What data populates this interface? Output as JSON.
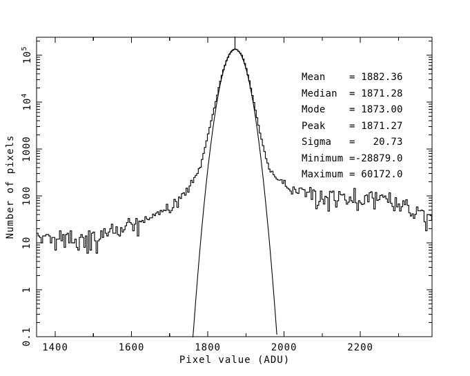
{
  "figure": {
    "background": "#ffffff",
    "line_color": "#000000"
  },
  "chart_data": {
    "type": "line",
    "title": "",
    "xlabel": "Pixel value (ADU)",
    "ylabel": "Number of pixels",
    "grid": false,
    "x_axis": {
      "min": 1351,
      "max": 2388,
      "major_step": 200,
      "minor_step": 100,
      "major_ticks": [
        {
          "value": 1400,
          "label": "1400"
        },
        {
          "value": 1600,
          "label": "1600"
        },
        {
          "value": 1800,
          "label": "1800"
        },
        {
          "value": 2000,
          "label": "2000"
        },
        {
          "value": 2200,
          "label": "2200"
        }
      ]
    },
    "y_axis": {
      "scale": "log",
      "min": 0.1,
      "max": 240000,
      "major_ticks": [
        {
          "value": 0.1,
          "label": "0.1"
        },
        {
          "value": 1,
          "label": "1"
        },
        {
          "value": 10,
          "label": "10"
        },
        {
          "value": 100,
          "label": "100"
        },
        {
          "value": 1000,
          "label": "1000"
        },
        {
          "value": 10000,
          "label": "10",
          "sup": "4"
        },
        {
          "value": 100000,
          "label": "10",
          "sup": "5"
        }
      ]
    },
    "series": [
      {
        "name": "pixel-value-histogram",
        "style": "step-histogram",
        "bin_width": 4,
        "noise_seed": 11,
        "envelope": [
          [
            1351,
            12.5
          ],
          [
            1380,
            13
          ],
          [
            1420,
            13.5
          ],
          [
            1460,
            14
          ],
          [
            1500,
            15
          ],
          [
            1540,
            17
          ],
          [
            1580,
            21
          ],
          [
            1620,
            28
          ],
          [
            1660,
            38
          ],
          [
            1690,
            52
          ],
          [
            1715,
            70
          ],
          [
            1740,
            110
          ],
          [
            1755,
            160
          ],
          [
            1770,
            260
          ],
          [
            1780,
            420
          ],
          [
            1790,
            800
          ],
          [
            1800,
            1900
          ],
          [
            1810,
            4300
          ],
          [
            1820,
            9300
          ],
          [
            1830,
            22000
          ],
          [
            1840,
            46000
          ],
          [
            1850,
            80000
          ],
          [
            1858,
            108000
          ],
          [
            1865,
            126000
          ],
          [
            1871,
            135000
          ],
          [
            1877,
            130000
          ],
          [
            1884,
            113000
          ],
          [
            1890,
            97000
          ],
          [
            1900,
            56000
          ],
          [
            1910,
            26000
          ],
          [
            1920,
            10500
          ],
          [
            1930,
            4200
          ],
          [
            1940,
            1700
          ],
          [
            1950,
            800
          ],
          [
            1960,
            420
          ],
          [
            1970,
            300
          ],
          [
            1990,
            210
          ],
          [
            2010,
            165
          ],
          [
            2040,
            122
          ],
          [
            2070,
            95
          ],
          [
            2100,
            80
          ],
          [
            2130,
            92
          ],
          [
            2160,
            95
          ],
          [
            2190,
            82
          ],
          [
            2220,
            78
          ],
          [
            2250,
            88
          ],
          [
            2280,
            84
          ],
          [
            2310,
            66
          ],
          [
            2340,
            52
          ],
          [
            2362,
            45
          ],
          [
            2372,
            24
          ],
          [
            2380,
            44
          ],
          [
            2388,
            32
          ]
        ]
      },
      {
        "name": "gaussian-fit",
        "style": "smooth",
        "amplitude": 135000,
        "center": 1871.27,
        "sigma": 20.73
      }
    ],
    "peak_marker": {
      "x": 1871.27
    }
  },
  "stats_panel": {
    "entries": [
      {
        "label": "Mean",
        "value": "1882.36"
      },
      {
        "label": "Median",
        "value": "1871.28"
      },
      {
        "label": "Mode",
        "value": "1873.00"
      },
      {
        "label": "Peak",
        "value": "1871.27"
      },
      {
        "label": "Sigma",
        "value": "20.73"
      },
      {
        "label": "Minimum",
        "value": "-28879.0"
      },
      {
        "label": "Maximum",
        "value": "60172.0"
      }
    ]
  }
}
